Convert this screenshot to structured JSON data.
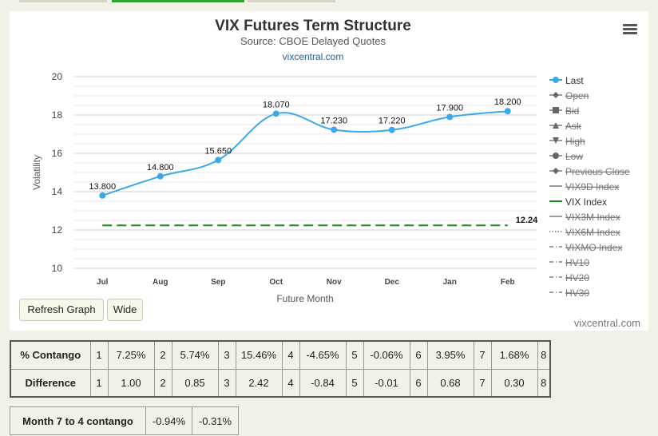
{
  "chart_data": {
    "type": "line",
    "title": "VIX Futures Term Structure",
    "subtitle": "Source: CBOE Delayed Quotes",
    "site_label": "vixcentral.com",
    "credit": "vixcentral.com",
    "xlabel": "Future Month",
    "ylabel": "Volatility",
    "categories": [
      "Jul",
      "Aug",
      "Sep",
      "Oct",
      "Nov",
      "Dec",
      "Jan",
      "Feb"
    ],
    "ylim": [
      10,
      20
    ],
    "yticks": [
      10,
      12,
      14,
      16,
      18,
      20
    ],
    "grid": true,
    "legend_position": "right",
    "series": [
      {
        "name": "Last",
        "values": [
          13.8,
          14.8,
          15.65,
          18.07,
          17.23,
          17.22,
          17.9,
          18.2
        ],
        "labels": [
          "13.800",
          "14.800",
          "15.650",
          "18.070",
          "17.230",
          "17.220",
          "17.900",
          "18.200"
        ],
        "color": "#3aa8ea"
      },
      {
        "name": "VIX Index",
        "value": 12.24,
        "label": "12.24",
        "color": "#1a8a1a",
        "dashed": true
      }
    ],
    "legend": [
      {
        "name": "Last",
        "symbol": "circle",
        "active": true,
        "color": "#3aa8ea"
      },
      {
        "name": "Open",
        "symbol": "diamond",
        "active": false
      },
      {
        "name": "Bid",
        "symbol": "square",
        "active": false
      },
      {
        "name": "Ask",
        "symbol": "triangle",
        "active": false
      },
      {
        "name": "High",
        "symbol": "triangle-down",
        "active": false
      },
      {
        "name": "Low",
        "symbol": "circle",
        "active": false
      },
      {
        "name": "Previous Close",
        "symbol": "diamond",
        "active": false
      },
      {
        "name": "VIX9D Index",
        "symbol": "solid",
        "active": false
      },
      {
        "name": "VIX Index",
        "symbol": "solid",
        "active": true,
        "color": "#1a8a1a"
      },
      {
        "name": "VIX3M Index",
        "symbol": "solid",
        "active": false
      },
      {
        "name": "VIX6M Index",
        "symbol": "dotted",
        "active": false
      },
      {
        "name": "VIXMO Index",
        "symbol": "dashdot",
        "active": false
      },
      {
        "name": "HV10",
        "symbol": "dashdot",
        "active": false
      },
      {
        "name": "HV20",
        "symbol": "dashdot",
        "active": false
      },
      {
        "name": "HV30",
        "symbol": "dashdot",
        "active": false
      }
    ]
  },
  "buttons": {
    "refresh": "Refresh Graph",
    "wide": "Wide"
  },
  "contango_table": {
    "rows": [
      {
        "label": "% Contango",
        "cells": [
          "1",
          "7.25%",
          "2",
          "5.74%",
          "3",
          "15.46%",
          "4",
          "-4.65%",
          "5",
          "-0.06%",
          "6",
          "3.95%",
          "7",
          "1.68%",
          "8"
        ]
      },
      {
        "label": "Difference",
        "cells": [
          "1",
          "1.00",
          "2",
          "0.85",
          "3",
          "2.42",
          "4",
          "-0.84",
          "5",
          "-0.01",
          "6",
          "0.68",
          "7",
          "0.30",
          "8"
        ]
      }
    ]
  },
  "month_table": {
    "label": "Month 7 to 4 contango",
    "values": [
      "-0.94%",
      "-0.31%"
    ]
  }
}
